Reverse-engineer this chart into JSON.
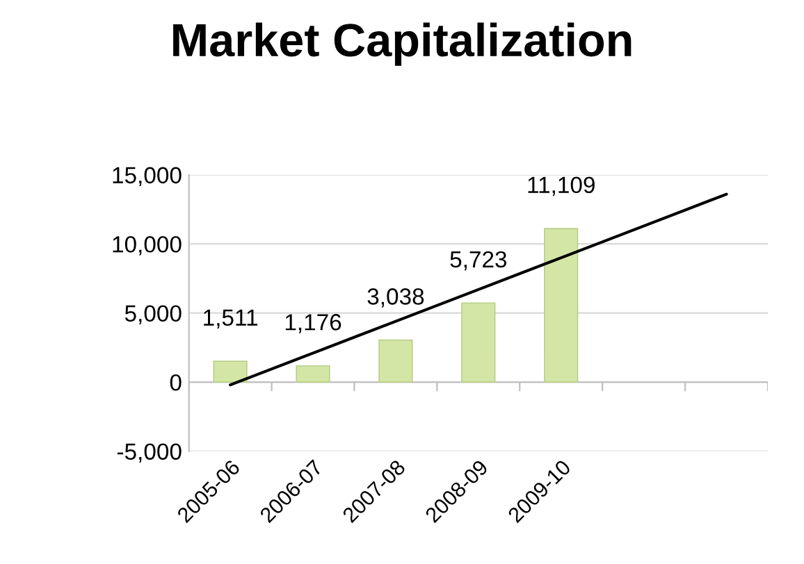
{
  "chart_data": {
    "type": "bar",
    "title": "Market Capitalization",
    "categories": [
      "2005-06",
      "2006-07",
      "2007-08",
      "2008-09",
      "2009-10",
      null,
      null
    ],
    "series": [
      {
        "color": "#d3e6a6",
        "values": [
          1511,
          1176,
          3038,
          5723,
          11109,
          null,
          null
        ],
        "value_labels": [
          "1,511",
          "1,176",
          "3,038",
          "5,723",
          "11,109",
          null,
          null
        ]
      },
      {
        "type": "line",
        "color": "#000000",
        "values": [
          -200,
          2100,
          4400,
          6700,
          9000,
          11300,
          13600
        ]
      }
    ],
    "ylim": [
      -5000,
      15000
    ],
    "yticks": [
      {
        "value": -5000,
        "label": "-5,000"
      },
      0,
      {
        "value": 5000,
        "label": "5,000"
      },
      {
        "value": 10000,
        "label": "10,000"
      },
      {
        "value": 15000,
        "label": "15,000"
      }
    ],
    "grid": "y"
  }
}
